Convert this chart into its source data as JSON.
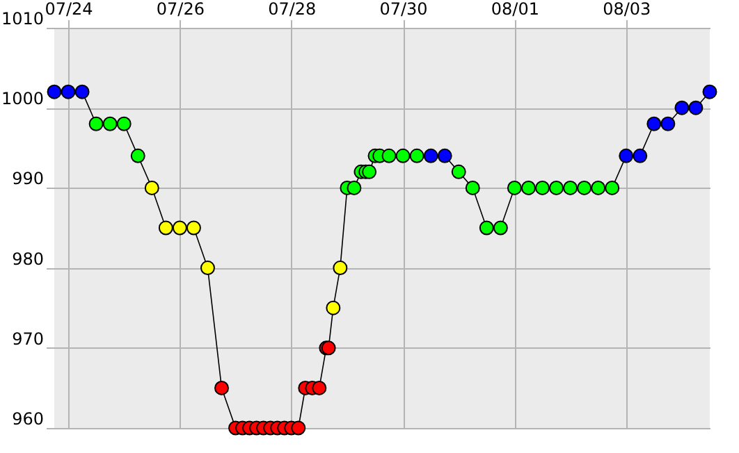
{
  "chart_data": {
    "type": "line",
    "marker": "circle",
    "line_style": "solid",
    "color": "#000000",
    "grid": true,
    "x": [
      "--07-23T18:00",
      "--07-24T00:00",
      "--07-24T06:00",
      "--07-24T12:00",
      "--07-24T18:00",
      "--07-25T00:00",
      "--07-25T06:00",
      "--07-25T12:00",
      "--07-25T18:00",
      "--07-26T00:00",
      "--07-26T06:00",
      "--07-26T12:00",
      "--07-26T18:00",
      "--07-27T00:00",
      "--07-27T03:00",
      "--07-27T06:00",
      "--07-27T09:00",
      "--07-27T12:00",
      "--07-27T15:00",
      "--07-27T18:00",
      "--07-27T21:00",
      "--07-28T00:00",
      "--07-28T03:00",
      "--07-28T06:00",
      "--07-28T09:00",
      "--07-28T12:00",
      "--07-28T15:00",
      "--07-28T16:00",
      "--07-28T18:00",
      "--07-28T21:00",
      "--07-29T00:00",
      "--07-29T03:00",
      "--07-29T06:00",
      "--07-29T08:00",
      "--07-29T09:30",
      "--07-29T12:00",
      "--07-29T14:00",
      "--07-29T18:00",
      "--07-30T00:00",
      "--07-30T06:00",
      "--07-30T12:00",
      "--07-30T18:00",
      "--07-31T00:00",
      "--07-31T06:00",
      "--07-31T12:00",
      "--07-31T18:00",
      "--08-01T00:00",
      "--08-01T06:00",
      "--08-01T12:00",
      "--08-01T18:00",
      "--08-02T00:00",
      "--08-02T06:00",
      "--08-02T12:00",
      "--08-02T18:00",
      "--08-03T00:00",
      "--08-03T06:00",
      "--08-03T12:00",
      "--08-03T18:00",
      "--08-04T00:00",
      "--08-04T06:00",
      "--08-04T12:00"
    ],
    "values": [
      1002,
      1002,
      1002,
      998,
      998,
      998,
      994,
      990,
      985,
      985,
      985,
      980,
      965,
      960,
      960,
      960,
      960,
      960,
      960,
      960,
      960,
      960,
      960,
      965,
      965,
      965,
      970,
      970,
      975,
      980,
      990,
      990,
      992,
      992,
      992,
      994,
      994,
      994,
      994,
      994,
      994,
      994,
      992,
      990,
      985,
      985,
      990,
      990,
      990,
      990,
      990,
      990,
      990,
      990,
      994,
      994,
      998,
      998,
      1000,
      1000,
      1002
    ],
    "colors": [
      "#0000ff",
      "#0000ff",
      "#0000ff",
      "#00ff00",
      "#00ff00",
      "#00ff00",
      "#00ff00",
      "#ffff00",
      "#ffff00",
      "#ffff00",
      "#ffff00",
      "#ffff00",
      "#ff0000",
      "#ff0000",
      "#ff0000",
      "#ff0000",
      "#ff0000",
      "#ff0000",
      "#ff0000",
      "#ff0000",
      "#ff0000",
      "#ff0000",
      "#ff0000",
      "#ff0000",
      "#ff0000",
      "#ff0000",
      "#ff0000",
      "#ff0000",
      "#ffff00",
      "#ffff00",
      "#00ff00",
      "#00ff00",
      "#00ff00",
      "#00ff00",
      "#00ff00",
      "#00ff00",
      "#00ff00",
      "#00ff00",
      "#00ff00",
      "#00ff00",
      "#0000ff",
      "#0000ff",
      "#00ff00",
      "#00ff00",
      "#00ff00",
      "#00ff00",
      "#00ff00",
      "#00ff00",
      "#00ff00",
      "#00ff00",
      "#00ff00",
      "#00ff00",
      "#00ff00",
      "#00ff00",
      "#0000ff",
      "#0000ff",
      "#0000ff",
      "#0000ff",
      "#0000ff",
      "#0000ff",
      "#0000ff"
    ],
    "xlim": [
      "--07-23T18:00",
      "--08-04T12:00"
    ],
    "xticks": [
      {
        "value": "--07-24",
        "label": "07/24"
      },
      {
        "value": "--07-26",
        "label": "07/26"
      },
      {
        "value": "--07-28",
        "label": "07/28"
      },
      {
        "value": "--07-30",
        "label": "07/30"
      },
      {
        "value": "--08-01",
        "label": "08/01"
      },
      {
        "value": "--08-03",
        "label": "08/03"
      }
    ],
    "ylim": [
      960,
      1010
    ],
    "yticks": [
      960,
      970,
      980,
      990,
      1000,
      1010
    ]
  }
}
